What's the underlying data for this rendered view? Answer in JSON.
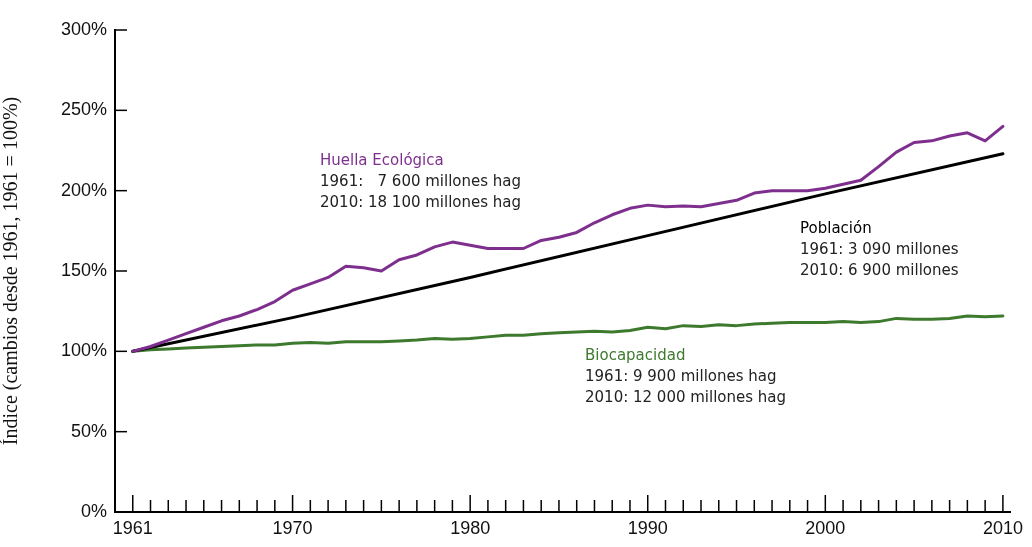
{
  "chart_data": {
    "type": "line",
    "ylabel": "Índice (cambios desde 1961, 1961 = 100%)",
    "xlim": [
      1960,
      2010.4
    ],
    "xticks": [
      {
        "value": 1961,
        "label": "1961"
      },
      {
        "value": 1962,
        "label": null
      },
      {
        "value": 1963,
        "label": null
      },
      {
        "value": 1964,
        "label": null
      },
      {
        "value": 1965,
        "label": null
      },
      {
        "value": 1966,
        "label": null
      },
      {
        "value": 1967,
        "label": null
      },
      {
        "value": 1968,
        "label": null
      },
      {
        "value": 1969,
        "label": null
      },
      1970,
      {
        "value": 1971,
        "label": null
      },
      {
        "value": 1972,
        "label": null
      },
      {
        "value": 1973,
        "label": null
      },
      {
        "value": 1974,
        "label": null
      },
      {
        "value": 1975,
        "label": null
      },
      {
        "value": 1976,
        "label": null
      },
      {
        "value": 1977,
        "label": null
      },
      {
        "value": 1978,
        "label": null
      },
      {
        "value": 1979,
        "label": null
      },
      1980,
      {
        "value": 1981,
        "label": null
      },
      {
        "value": 1982,
        "label": null
      },
      {
        "value": 1983,
        "label": null
      },
      {
        "value": 1984,
        "label": null
      },
      {
        "value": 1985,
        "label": null
      },
      {
        "value": 1986,
        "label": null
      },
      {
        "value": 1987,
        "label": null
      },
      {
        "value": 1988,
        "label": null
      },
      {
        "value": 1989,
        "label": null
      },
      1990,
      {
        "value": 1991,
        "label": null
      },
      {
        "value": 1992,
        "label": null
      },
      {
        "value": 1993,
        "label": null
      },
      {
        "value": 1994,
        "label": null
      },
      {
        "value": 1995,
        "label": null
      },
      {
        "value": 1996,
        "label": null
      },
      {
        "value": 1997,
        "label": null
      },
      {
        "value": 1998,
        "label": null
      },
      {
        "value": 1999,
        "label": null
      },
      2000,
      {
        "value": 2001,
        "label": null
      },
      {
        "value": 2002,
        "label": null
      },
      {
        "value": 2003,
        "label": null
      },
      {
        "value": 2004,
        "label": null
      },
      {
        "value": 2005,
        "label": null
      },
      {
        "value": 2006,
        "label": null
      },
      {
        "value": 2007,
        "label": null
      },
      {
        "value": 2008,
        "label": null
      },
      {
        "value": 2009,
        "label": null
      },
      2010
    ],
    "ylim": [
      0,
      300
    ],
    "yticks": [
      {
        "value": 0,
        "label": "0%"
      },
      {
        "value": 50,
        "label": "50%"
      },
      {
        "value": 100,
        "label": "100%"
      },
      {
        "value": 150,
        "label": "150%"
      },
      {
        "value": 200,
        "label": "200%"
      },
      {
        "value": 250,
        "label": "250%"
      },
      {
        "value": 300,
        "label": "300%"
      }
    ],
    "grid": false,
    "legend": false,
    "marker": "none",
    "line_style": "solid",
    "series": [
      {
        "name": "Huella Ecológica",
        "color": "#7e2f8e",
        "x": [
          1961,
          1962,
          1963,
          1964,
          1965,
          1966,
          1967,
          1968,
          1969,
          1970,
          1971,
          1972,
          1973,
          1974,
          1975,
          1976,
          1977,
          1978,
          1979,
          1980,
          1981,
          1982,
          1983,
          1984,
          1985,
          1986,
          1987,
          1988,
          1989,
          1990,
          1991,
          1992,
          1993,
          1994,
          1995,
          1996,
          1997,
          1998,
          1999,
          2000,
          2001,
          2002,
          2003,
          2004,
          2005,
          2006,
          2007,
          2008,
          2009,
          2010
        ],
        "values": [
          100,
          103,
          107,
          111,
          115,
          119,
          122,
          126,
          131,
          138,
          142,
          146,
          153,
          152,
          150,
          157,
          160,
          165,
          168,
          166,
          164,
          164,
          164,
          169,
          171,
          174,
          180,
          185,
          189,
          191,
          190,
          190.5,
          190,
          192,
          194,
          198.5,
          200,
          200,
          200,
          201.5,
          204,
          206.5,
          215,
          224,
          230,
          231,
          234,
          236,
          231,
          240
        ]
      },
      {
        "name": "Población",
        "color": "#000000",
        "x": [
          1961,
          1970,
          1980,
          1990,
          2000,
          2010
        ],
        "values": [
          100,
          121,
          146,
          172,
          198,
          223
        ]
      },
      {
        "name": "Biocapacidad",
        "color": "#3d7a2e",
        "x": [
          1961,
          1962,
          1963,
          1964,
          1965,
          1966,
          1967,
          1968,
          1969,
          1970,
          1971,
          1972,
          1973,
          1974,
          1975,
          1976,
          1977,
          1978,
          1979,
          1980,
          1981,
          1982,
          1983,
          1984,
          1985,
          1986,
          1987,
          1988,
          1989,
          1990,
          1991,
          1992,
          1993,
          1994,
          1995,
          1996,
          1997,
          1998,
          1999,
          2000,
          2001,
          2002,
          2003,
          2004,
          2005,
          2006,
          2007,
          2008,
          2009,
          2010
        ],
        "values": [
          100,
          101,
          101.5,
          102,
          102.5,
          103,
          103.5,
          104,
          104,
          105,
          105.5,
          105,
          106,
          106,
          106,
          106.5,
          107,
          108,
          107.5,
          108,
          109,
          110,
          110,
          111,
          111.5,
          112,
          112.5,
          112,
          113,
          115,
          114,
          116,
          115.5,
          116.5,
          116,
          117,
          117.5,
          118,
          118,
          118,
          118.5,
          118,
          118.5,
          120.5,
          120,
          120,
          120.5,
          122,
          121.5,
          122
        ]
      }
    ],
    "annotations": [
      "1961:   7 600 millones hag",
      "2010: 18 100 millones hag",
      "1961: 3 090 millones",
      "2010: 6 900 millones",
      "1961: 9 900 millones hag",
      "2010: 12 000 millones hag"
    ]
  }
}
